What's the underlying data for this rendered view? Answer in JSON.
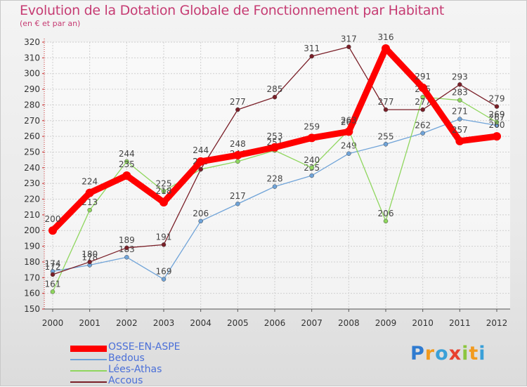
{
  "title": "Evolution de la Dotation Globale de Fonctionnement par Habitant",
  "subtitle": "(en € et par an)",
  "logo": {
    "text": "Proxiti",
    "letters": [
      {
        "ch": "P",
        "color": "#2f7bd0"
      },
      {
        "ch": "r",
        "color": "#f29a1e"
      },
      {
        "ch": "o",
        "color": "#3aa0d8"
      },
      {
        "ch": "x",
        "color": "#e8412f"
      },
      {
        "ch": "i",
        "color": "#8cc63f"
      },
      {
        "ch": "t",
        "color": "#f29a1e"
      },
      {
        "ch": "i",
        "color": "#3aa0d8"
      }
    ]
  },
  "chart_data": {
    "type": "line",
    "title": "Evolution de la Dotation Globale de Fonctionnement par Habitant",
    "subtitle": "(en € et par an)",
    "xlabel": "",
    "ylabel": "",
    "categories": [
      "2000",
      "2001",
      "2002",
      "2003",
      "2004",
      "2005",
      "2006",
      "2007",
      "2008",
      "2009",
      "2010",
      "2011",
      "2012"
    ],
    "ylim": [
      150,
      320
    ],
    "yticks": [
      150,
      160,
      170,
      180,
      190,
      200,
      210,
      220,
      230,
      240,
      250,
      260,
      270,
      280,
      290,
      300,
      310,
      320
    ],
    "grid": true,
    "legend_position": "bottom-left",
    "series": [
      {
        "name": "Bedous",
        "color": "#6fa3d8",
        "values": [
          174,
          178,
          183,
          169,
          206,
          217,
          228,
          235,
          249,
          255,
          262,
          271,
          267
        ],
        "label_offset": "up"
      },
      {
        "name": "Lées-Athas",
        "color": "#8fd65e",
        "values": [
          161,
          213,
          244,
          225,
          239,
          244,
          251,
          240,
          264,
          206,
          285,
          283,
          269
        ],
        "label_offset": "up"
      },
      {
        "name": "Accous",
        "color": "#7a1f28",
        "values": [
          172,
          180,
          189,
          191,
          239,
          277,
          285,
          311,
          317,
          277,
          277,
          293,
          279
        ],
        "label_offset": "up"
      },
      {
        "name": "OSSE-EN-ASPE",
        "color": "#ff0000",
        "values": [
          200,
          224,
          235,
          218,
          244,
          248,
          253,
          259,
          263,
          316,
          291,
          257,
          260
        ],
        "label_offset": "up",
        "bold": true
      }
    ],
    "legend": [
      "OSSE-EN-ASPE",
      "Bedous",
      "Lées-Athas",
      "Accous"
    ]
  }
}
